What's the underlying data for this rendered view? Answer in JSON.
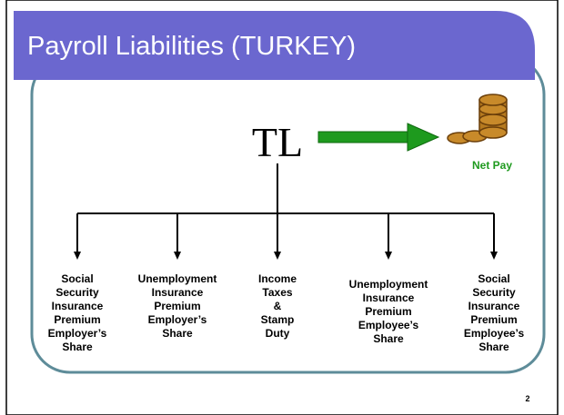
{
  "header": {
    "title": "Payroll Liabilities (TURKEY)"
  },
  "root": {
    "label": "TL"
  },
  "output": {
    "label": "Net Pay"
  },
  "items": [
    {
      "lines": [
        "Social",
        "Security",
        "Insurance",
        "Premium",
        "Employer’s",
        "Share"
      ]
    },
    {
      "lines": [
        "Unemployment",
        "Insurance",
        "Premium",
        "Employer’s",
        "Share"
      ]
    },
    {
      "lines": [
        "Income",
        "Taxes",
        "&",
        "Stamp",
        "Duty"
      ]
    },
    {
      "lines": [
        "Unemployment",
        "Insurance",
        "Premium",
        "Employee’s",
        "Share"
      ]
    },
    {
      "lines": [
        "Social",
        "Security",
        "Insurance",
        "Premium",
        "Employee’s",
        "Share"
      ]
    }
  ],
  "footer": {
    "page": "2"
  }
}
